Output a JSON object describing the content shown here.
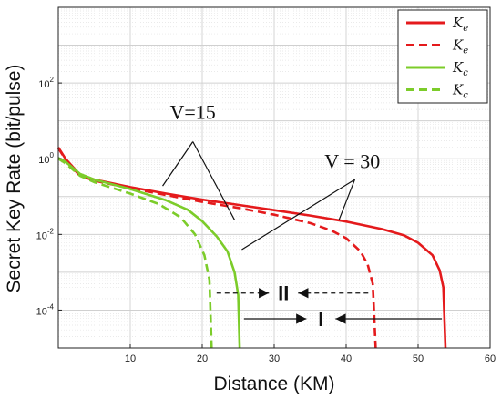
{
  "chart_data": {
    "type": "line",
    "xlabel": "Distance (KM)",
    "ylabel": "Secret Key Rate (bit/pulse)",
    "xlim": [
      0,
      60
    ],
    "ylim_log10": [
      -5,
      4
    ],
    "y_scale": "log",
    "grid": true,
    "legend_placement": "top-right",
    "x_ticks": [
      "10",
      "20",
      "30",
      "40",
      "50",
      "60"
    ],
    "y_ticks": [
      {
        "base": "10",
        "exp": "2",
        "log10": 2
      },
      {
        "base": "10",
        "exp": "0",
        "log10": 0
      },
      {
        "base": "10",
        "exp": "-2",
        "log10": -2
      },
      {
        "base": "10",
        "exp": "-4",
        "log10": -4
      }
    ],
    "legend": [
      {
        "symbol": "K",
        "sub": "e",
        "color": "#e41a1c",
        "dash": false
      },
      {
        "symbol": "K",
        "sub": "e",
        "color": "#e41a1c",
        "dash": true
      },
      {
        "symbol": "K",
        "sub": "c",
        "color": "#7ccc2a",
        "dash": false
      },
      {
        "symbol": "K",
        "sub": "c",
        "color": "#7ccc2a",
        "dash": true
      }
    ],
    "series": [
      {
        "color": "#e41a1c",
        "dash": false,
        "cutoff": 53.8,
        "points": [
          [
            0,
            0.3
          ],
          [
            1,
            0.0
          ],
          [
            3,
            -0.42
          ],
          [
            5,
            -0.55
          ],
          [
            10,
            -0.75
          ],
          [
            15,
            -0.92
          ],
          [
            20,
            -1.08
          ],
          [
            25,
            -1.22
          ],
          [
            30,
            -1.36
          ],
          [
            35,
            -1.5
          ],
          [
            40,
            -1.66
          ],
          [
            45,
            -1.86
          ],
          [
            48,
            -2.02
          ],
          [
            50,
            -2.22
          ],
          [
            52,
            -2.55
          ],
          [
            53,
            -2.95
          ],
          [
            53.5,
            -3.4
          ],
          [
            53.8,
            -5.0
          ]
        ]
      },
      {
        "color": "#e41a1c",
        "dash": true,
        "cutoff": 44.1,
        "points": [
          [
            0,
            0.28
          ],
          [
            1,
            -0.02
          ],
          [
            3,
            -0.45
          ],
          [
            5,
            -0.58
          ],
          [
            10,
            -0.78
          ],
          [
            15,
            -0.96
          ],
          [
            20,
            -1.14
          ],
          [
            25,
            -1.3
          ],
          [
            30,
            -1.48
          ],
          [
            35,
            -1.7
          ],
          [
            38,
            -1.9
          ],
          [
            40,
            -2.1
          ],
          [
            42,
            -2.45
          ],
          [
            43,
            -2.8
          ],
          [
            43.7,
            -3.3
          ],
          [
            44.1,
            -5.0
          ]
        ]
      },
      {
        "color": "#7ccc2a",
        "dash": false,
        "cutoff": 25.2,
        "points": [
          [
            0,
            0.02
          ],
          [
            1,
            -0.08
          ],
          [
            3,
            -0.4
          ],
          [
            5,
            -0.55
          ],
          [
            10,
            -0.8
          ],
          [
            15,
            -1.1
          ],
          [
            18,
            -1.35
          ],
          [
            20,
            -1.65
          ],
          [
            22,
            -2.05
          ],
          [
            23.5,
            -2.45
          ],
          [
            24.5,
            -3.0
          ],
          [
            25.0,
            -3.6
          ],
          [
            25.2,
            -5.0
          ]
        ]
      },
      {
        "color": "#7ccc2a",
        "dash": true,
        "cutoff": 21.3,
        "points": [
          [
            0,
            0.0
          ],
          [
            1,
            -0.12
          ],
          [
            3,
            -0.45
          ],
          [
            5,
            -0.62
          ],
          [
            10,
            -0.92
          ],
          [
            14,
            -1.2
          ],
          [
            17,
            -1.55
          ],
          [
            19,
            -2.0
          ],
          [
            20.3,
            -2.55
          ],
          [
            21.0,
            -3.2
          ],
          [
            21.3,
            -5.0
          ]
        ]
      }
    ],
    "annotations": [
      {
        "text": "V=15",
        "label_x": 15.5,
        "label_y": 1.05,
        "hub": [
          18.7,
          0.45
        ],
        "targets": [
          [
            14.5,
            -0.72
          ],
          [
            24.5,
            -1.62
          ]
        ]
      },
      {
        "text": "V = 30",
        "label_x": 37,
        "label_y": -0.25,
        "hub": [
          41.2,
          -0.55
        ],
        "targets": [
          [
            25.5,
            -2.4
          ],
          [
            39.0,
            -1.62
          ]
        ]
      }
    ],
    "regions": [
      {
        "text": "II",
        "y": -3.55,
        "x_from": 22,
        "x_to": 43.5,
        "label_x": 31.3
      },
      {
        "text": "I",
        "y": -4.23,
        "x_from": 25.8,
        "x_to": 53.3,
        "label_x": 36.5
      }
    ]
  }
}
